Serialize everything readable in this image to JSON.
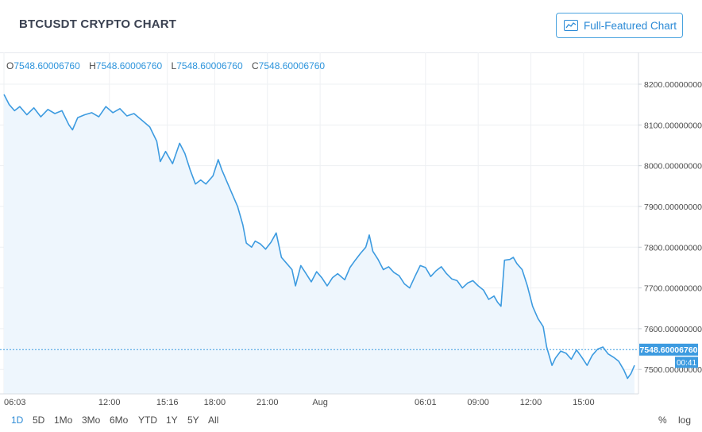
{
  "header": {
    "title": "BTCUSDT CRYPTO CHART",
    "full_featured_label": "Full-Featured Chart"
  },
  "ohlc": {
    "o_label": "O",
    "o_value": "7548.60006760",
    "h_label": "H",
    "h_value": "7548.60006760",
    "l_label": "L",
    "l_value": "7548.60006760",
    "c_label": "C",
    "c_value": "7548.60006760"
  },
  "price_badge": {
    "price": "7548.60006760",
    "countdown": "00:41"
  },
  "ranges": [
    "1D",
    "5D",
    "1Mo",
    "3Mo",
    "6Mo",
    "YTD",
    "1Y",
    "5Y",
    "All"
  ],
  "active_range": "1D",
  "scale_buttons": {
    "percent": "%",
    "log": "log"
  },
  "colors": {
    "line": "#3d9be0",
    "fill": "#eef6fd",
    "accent": "#2b8ad6",
    "grid": "#eef0f3"
  },
  "chart_data": {
    "type": "area",
    "title": "BTCUSDT",
    "y_tick_labels": [
      "8200.00000000",
      "8100.00000000",
      "8000.00000000",
      "7900.00000000",
      "7800.00000000",
      "7700.00000000",
      "7600.00000000",
      "7500.00000000"
    ],
    "y_ticks": [
      8200,
      8100,
      8000,
      7900,
      7800,
      7700,
      7600,
      7500
    ],
    "ylim": [
      7440,
      8278
    ],
    "x_tick_labels": [
      "06:03",
      "12:00",
      "15:16",
      "18:00",
      "21:00",
      "Aug",
      "06:01",
      "09:00",
      "12:00",
      "15:00"
    ],
    "x_tick_hours": [
      0,
      6,
      9.3,
      12,
      15,
      18,
      24,
      27,
      30,
      33
    ],
    "x_range_hours": [
      0,
      35.9
    ],
    "current_price": 7548.6,
    "grid": true,
    "points": [
      [
        0,
        8175
      ],
      [
        0.3,
        8150
      ],
      [
        0.6,
        8135
      ],
      [
        0.9,
        8145
      ],
      [
        1.3,
        8125
      ],
      [
        1.7,
        8142
      ],
      [
        2.1,
        8120
      ],
      [
        2.5,
        8138
      ],
      [
        2.9,
        8128
      ],
      [
        3.3,
        8135
      ],
      [
        3.7,
        8100
      ],
      [
        3.9,
        8088
      ],
      [
        4.2,
        8118
      ],
      [
        4.6,
        8125
      ],
      [
        5.0,
        8130
      ],
      [
        5.4,
        8120
      ],
      [
        5.8,
        8145
      ],
      [
        6.2,
        8130
      ],
      [
        6.6,
        8140
      ],
      [
        7.0,
        8122
      ],
      [
        7.4,
        8128
      ],
      [
        7.9,
        8110
      ],
      [
        8.3,
        8095
      ],
      [
        8.7,
        8060
      ],
      [
        8.9,
        8010
      ],
      [
        9.2,
        8035
      ],
      [
        9.6,
        8005
      ],
      [
        10.0,
        8055
      ],
      [
        10.3,
        8030
      ],
      [
        10.6,
        7990
      ],
      [
        10.9,
        7955
      ],
      [
        11.2,
        7965
      ],
      [
        11.5,
        7955
      ],
      [
        11.9,
        7975
      ],
      [
        12.2,
        8015
      ],
      [
        12.4,
        7990
      ],
      [
        12.7,
        7960
      ],
      [
        13.0,
        7930
      ],
      [
        13.3,
        7900
      ],
      [
        13.6,
        7855
      ],
      [
        13.8,
        7810
      ],
      [
        14.1,
        7800
      ],
      [
        14.3,
        7815
      ],
      [
        14.6,
        7808
      ],
      [
        14.9,
        7795
      ],
      [
        15.2,
        7812
      ],
      [
        15.5,
        7835
      ],
      [
        15.8,
        7775
      ],
      [
        16.1,
        7760
      ],
      [
        16.4,
        7745
      ],
      [
        16.6,
        7705
      ],
      [
        16.9,
        7755
      ],
      [
        17.2,
        7735
      ],
      [
        17.5,
        7715
      ],
      [
        17.8,
        7740
      ],
      [
        18.1,
        7725
      ],
      [
        18.4,
        7705
      ],
      [
        18.7,
        7725
      ],
      [
        19.0,
        7735
      ],
      [
        19.4,
        7720
      ],
      [
        19.7,
        7750
      ],
      [
        20.0,
        7768
      ],
      [
        20.3,
        7785
      ],
      [
        20.6,
        7800
      ],
      [
        20.8,
        7830
      ],
      [
        21.0,
        7790
      ],
      [
        21.3,
        7770
      ],
      [
        21.6,
        7745
      ],
      [
        21.9,
        7752
      ],
      [
        22.2,
        7738
      ],
      [
        22.5,
        7730
      ],
      [
        22.8,
        7710
      ],
      [
        23.1,
        7700
      ],
      [
        23.4,
        7728
      ],
      [
        23.7,
        7755
      ],
      [
        24.0,
        7750
      ],
      [
        24.3,
        7728
      ],
      [
        24.6,
        7742
      ],
      [
        24.9,
        7752
      ],
      [
        25.2,
        7735
      ],
      [
        25.5,
        7722
      ],
      [
        25.8,
        7718
      ],
      [
        26.1,
        7700
      ],
      [
        26.4,
        7712
      ],
      [
        26.7,
        7718
      ],
      [
        27.0,
        7705
      ],
      [
        27.3,
        7695
      ],
      [
        27.6,
        7672
      ],
      [
        27.9,
        7680
      ],
      [
        28.1,
        7665
      ],
      [
        28.3,
        7655
      ],
      [
        28.5,
        7768
      ],
      [
        28.8,
        7770
      ],
      [
        29.0,
        7775
      ],
      [
        29.2,
        7760
      ],
      [
        29.5,
        7745
      ],
      [
        29.8,
        7705
      ],
      [
        30.1,
        7655
      ],
      [
        30.4,
        7625
      ],
      [
        30.7,
        7605
      ],
      [
        30.9,
        7555
      ],
      [
        31.2,
        7510
      ],
      [
        31.4,
        7528
      ],
      [
        31.7,
        7545
      ],
      [
        32.0,
        7540
      ],
      [
        32.3,
        7525
      ],
      [
        32.6,
        7548
      ],
      [
        32.9,
        7530
      ],
      [
        33.2,
        7510
      ],
      [
        33.5,
        7535
      ],
      [
        33.8,
        7550
      ],
      [
        34.1,
        7555
      ],
      [
        34.4,
        7538
      ],
      [
        34.7,
        7530
      ],
      [
        35.0,
        7520
      ],
      [
        35.3,
        7498
      ],
      [
        35.5,
        7478
      ],
      [
        35.7,
        7490
      ],
      [
        35.9,
        7510
      ]
    ]
  }
}
